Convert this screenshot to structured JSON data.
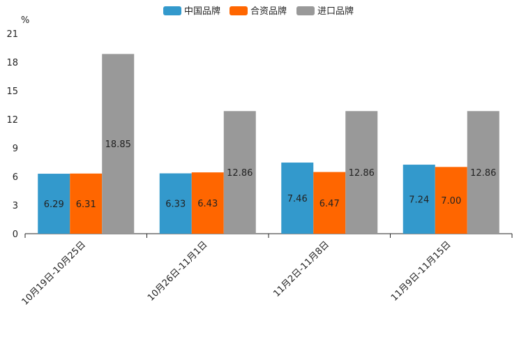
{
  "chart_data": {
    "type": "bar",
    "title": "",
    "xlabel": "",
    "ylabel": "%",
    "ylim": [
      0,
      21
    ],
    "yticks": [
      0,
      3,
      6,
      9,
      12,
      15,
      18,
      21
    ],
    "categories": [
      "10月19日-10月25日",
      "10月26日-11月1日",
      "11月2日-11月8日",
      "11月9日-11月15日"
    ],
    "series": [
      {
        "name": "中国品牌",
        "color": "#3399cc",
        "values": [
          6.29,
          6.33,
          7.46,
          7.24
        ],
        "labels": [
          "6.29",
          "6.33",
          "7.46",
          "7.24"
        ]
      },
      {
        "name": "合资品牌",
        "color": "#ff6600",
        "values": [
          6.31,
          6.43,
          6.47,
          7.0
        ],
        "labels": [
          "6.31",
          "6.43",
          "6.47",
          "7.00"
        ]
      },
      {
        "name": "进口品牌",
        "color": "#999999",
        "values": [
          18.85,
          12.86,
          12.86,
          12.86
        ],
        "labels": [
          "18.85",
          "12.86",
          "12.86",
          "12.86"
        ]
      }
    ],
    "legend_position": "top-center",
    "grid": false
  }
}
